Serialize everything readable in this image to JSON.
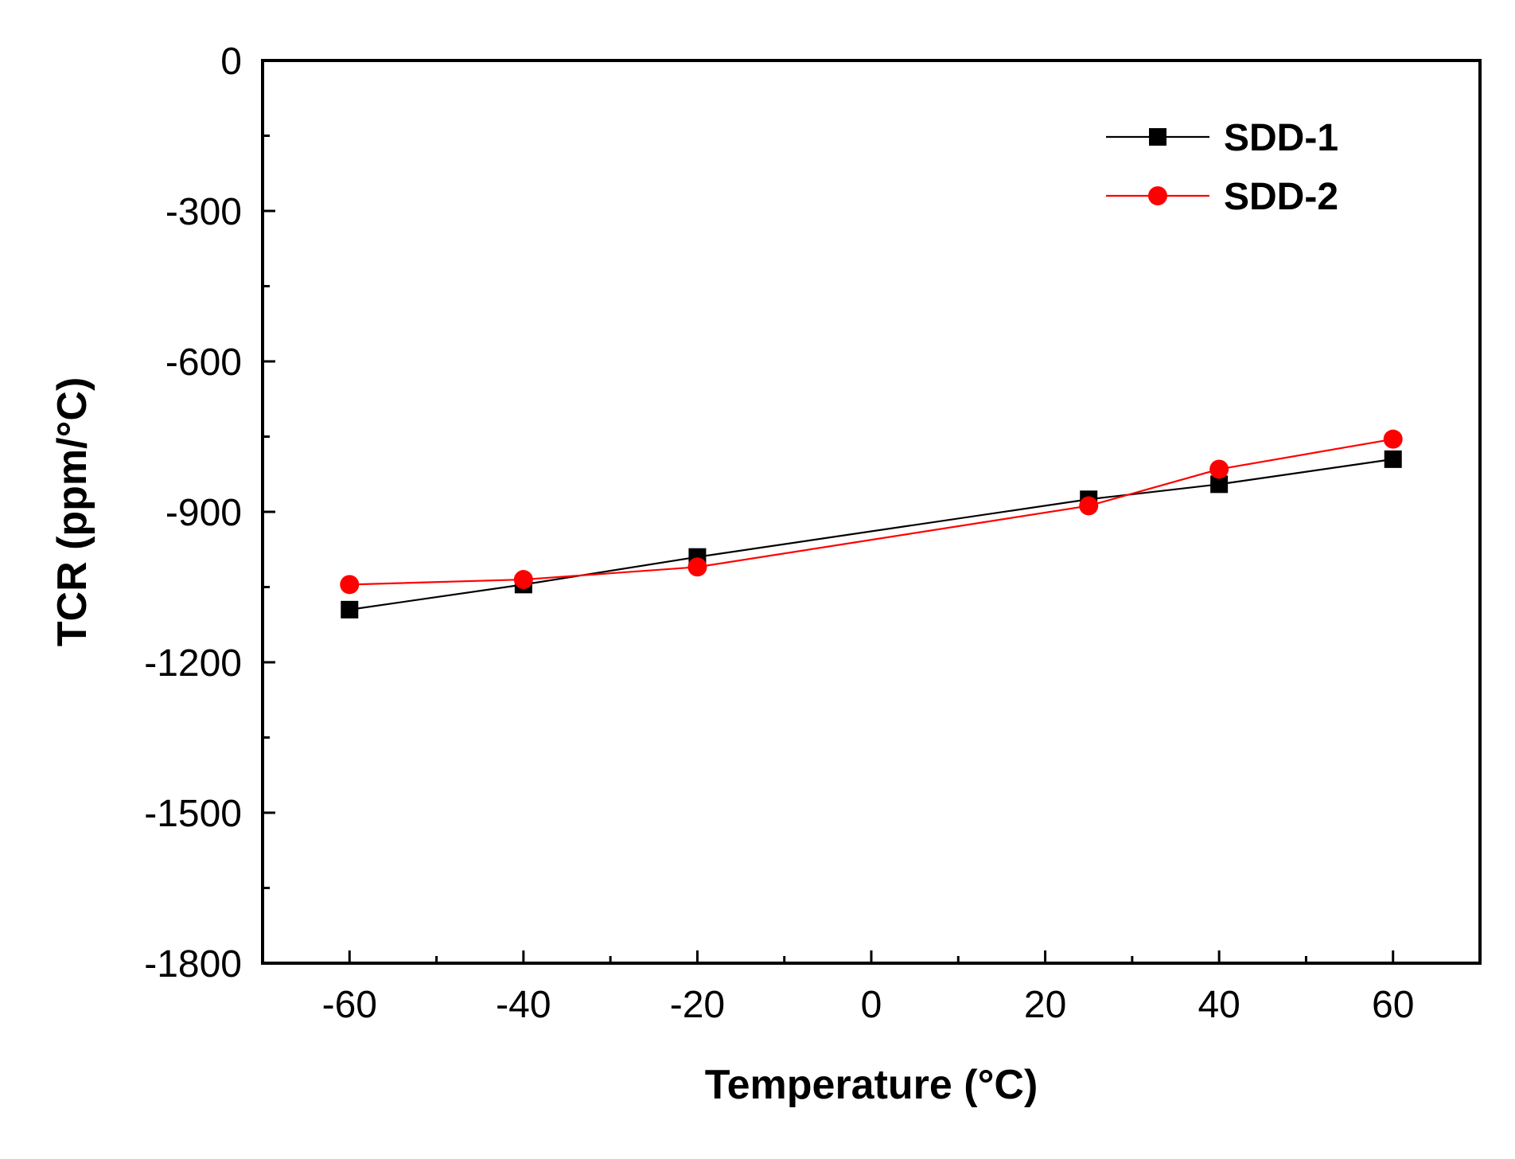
{
  "chart_data": {
    "type": "line",
    "title": "",
    "xlabel": "Temperature (°C)",
    "ylabel": "TCR (ppm/°C)",
    "xlim": [
      -70,
      70
    ],
    "ylim": [
      -1800,
      0
    ],
    "xticks": [
      -60,
      -40,
      -20,
      0,
      20,
      40,
      60
    ],
    "xtick_labels": [
      "-60",
      "-40",
      "-20",
      "0",
      "20",
      "40",
      "60"
    ],
    "yticks": [
      0,
      -300,
      -600,
      -900,
      -1200,
      -1500,
      -1800
    ],
    "ytick_labels": [
      "0",
      "-300",
      "-600",
      "-900",
      "-1200",
      "-1500",
      "-1800"
    ],
    "grid": false,
    "legend_position": "top-right",
    "series": [
      {
        "name": "SDD-1",
        "color": "#000000",
        "marker": "square",
        "x": [
          -60,
          -40,
          -20,
          25,
          40,
          60
        ],
        "y": [
          -1095,
          -1045,
          -990,
          -875,
          -845,
          -795
        ]
      },
      {
        "name": "SDD-2",
        "color": "#ff0000",
        "marker": "circle",
        "x": [
          -60,
          -40,
          -20,
          25,
          40,
          60
        ],
        "y": [
          -1045,
          -1035,
          -1010,
          -888,
          -815,
          -755
        ]
      }
    ]
  }
}
